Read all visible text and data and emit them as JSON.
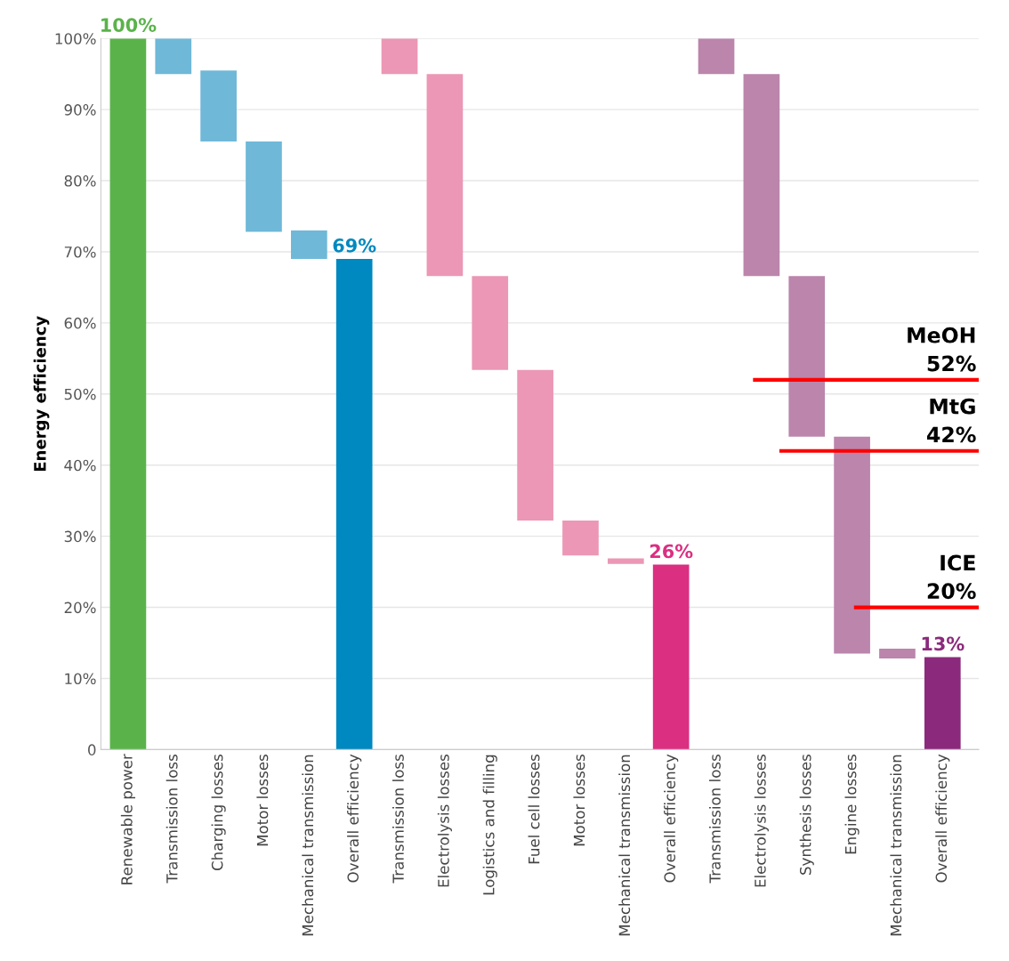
{
  "chart_data": {
    "type": "bar",
    "ylabel": "Energy efficiency",
    "categories": [
      "Renewable power",
      "Transmission loss",
      "Charging losses",
      "Motor losses",
      "Mechanical transmission",
      "Overall efficiency",
      "Transmission loss",
      "Electrolysis losses",
      "Logistics and filling",
      "Fuel cell losses",
      "Motor losses",
      "Mechanical transmission",
      "Overall efficiency",
      "Transmission loss",
      "Electrolysis losses",
      "Synthesis losses",
      "Engine losses",
      "Mechanical transmission",
      "Overall efficiency"
    ],
    "base": [
      0,
      95,
      85.5,
      72.8,
      69,
      0,
      95,
      66.6,
      53.4,
      32.2,
      27.3,
      26.1,
      0,
      95,
      66.6,
      44,
      13.5,
      12.8,
      0
    ],
    "values": [
      100,
      5,
      10,
      12.7,
      4,
      69,
      5,
      28.4,
      13.2,
      21.2,
      4.9,
      0.8,
      26,
      5,
      28.4,
      22.6,
      30.5,
      1.4,
      13
    ],
    "colors": [
      "#5ab34a",
      "#6fb8d8",
      "#6fb8d8",
      "#6fb8d8",
      "#6fb8d8",
      "#0088c0",
      "#eb97b5",
      "#eb97b5",
      "#eb97b5",
      "#eb97b5",
      "#eb97b5",
      "#eb97b5",
      "#db2f82",
      "#bb85ac",
      "#bb85ac",
      "#bb85ac",
      "#bb85ac",
      "#bb85ac",
      "#8b2a7c"
    ],
    "value_labels": [
      "100%",
      null,
      null,
      null,
      null,
      "69%",
      null,
      null,
      null,
      null,
      null,
      null,
      "26%",
      null,
      null,
      null,
      null,
      null,
      "13%"
    ],
    "ylim": [
      0,
      100
    ],
    "yticks": [
      {
        "value": 0,
        "label": "0"
      },
      {
        "value": 10,
        "label": "10%"
      },
      {
        "value": 20,
        "label": "20%"
      },
      {
        "value": 30,
        "label": "30%"
      },
      {
        "value": 40,
        "label": "40%"
      },
      {
        "value": 50,
        "label": "50%"
      },
      {
        "value": 60,
        "label": "60%"
      },
      {
        "value": 70,
        "label": "70%"
      },
      {
        "value": 80,
        "label": "80%"
      },
      {
        "value": 90,
        "label": "90%"
      },
      {
        "value": 100,
        "label": "100%"
      }
    ],
    "grid": "y",
    "ref_lines": [
      {
        "axis": "y",
        "value": 52,
        "label": "MeOH\n52%",
        "color": "#ff0000"
      },
      {
        "axis": "y",
        "value": 42,
        "label": "MtG\n42%",
        "color": "#ff0000"
      },
      {
        "axis": "y",
        "value": 20,
        "label": "ICE\n20%",
        "color": "#ff0000"
      }
    ]
  }
}
